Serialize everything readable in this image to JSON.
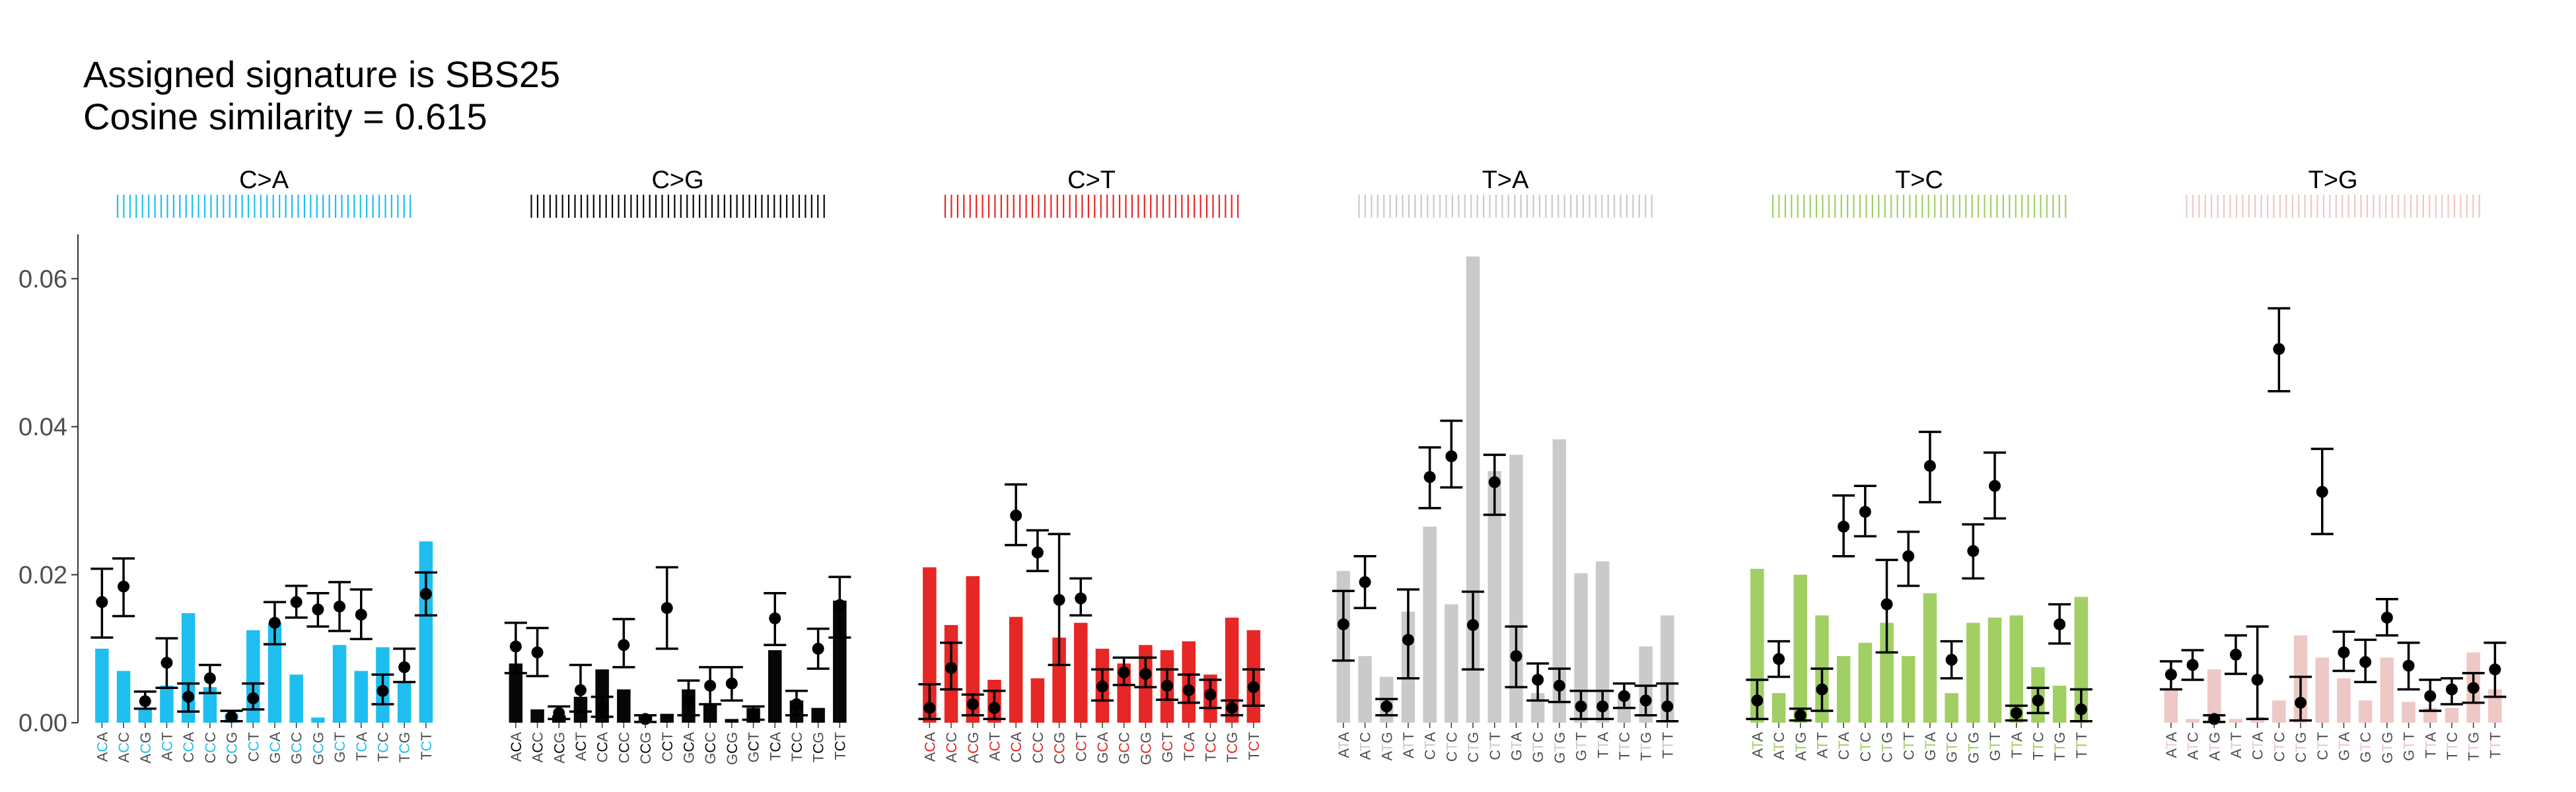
{
  "chart_data": {
    "type": "bar",
    "title_lines": [
      "Assigned signature is SBS25",
      "Cosine similarity = 0.615"
    ],
    "ylim": [
      0,
      0.066
    ],
    "yticks": [
      0.0,
      0.02,
      0.04,
      0.06
    ],
    "ytick_labels": [
      "0.00",
      "0.02",
      "0.04",
      "0.06"
    ],
    "xlabel": "",
    "ylabel": "",
    "grid": false,
    "legend": "none",
    "mutation_types": [
      "C>A",
      "C>G",
      "C>T",
      "T>A",
      "T>C",
      "T>G"
    ],
    "type_colors": [
      "#1ebff0",
      "#050708",
      "#e62725",
      "#cbcacb",
      "#a1cf64",
      "#edc8c5"
    ],
    "contexts": [
      [
        "ACA",
        "ACC",
        "ACG",
        "ACT",
        "CCA",
        "CCC",
        "CCG",
        "CCT",
        "GCA",
        "GCC",
        "GCG",
        "GCT",
        "TCA",
        "TCC",
        "TCG",
        "TCT"
      ],
      [
        "ACA",
        "ACC",
        "ACG",
        "ACT",
        "CCA",
        "CCC",
        "CCG",
        "CCT",
        "GCA",
        "GCC",
        "GCG",
        "GCT",
        "TCA",
        "TCC",
        "TCG",
        "TCT"
      ],
      [
        "ACA",
        "ACC",
        "ACG",
        "ACT",
        "CCA",
        "CCC",
        "CCG",
        "CCT",
        "GCA",
        "GCC",
        "GCG",
        "GCT",
        "TCA",
        "TCC",
        "TCG",
        "TCT"
      ],
      [
        "ATA",
        "ATC",
        "ATG",
        "ATT",
        "CTA",
        "CTC",
        "CTG",
        "CTT",
        "GTA",
        "GTC",
        "GTG",
        "GTT",
        "TTA",
        "TTC",
        "TTG",
        "TTT"
      ],
      [
        "ATA",
        "ATC",
        "ATG",
        "ATT",
        "CTA",
        "CTC",
        "CTG",
        "CTT",
        "GTA",
        "GTC",
        "GTG",
        "GTT",
        "TTA",
        "TTC",
        "TTG",
        "TTT"
      ],
      [
        "ATA",
        "ATC",
        "ATG",
        "ATT",
        "CTA",
        "CTC",
        "CTG",
        "CTT",
        "GTA",
        "GTC",
        "GTG",
        "GTT",
        "TTA",
        "TTC",
        "TTG",
        "TTT"
      ]
    ],
    "signature_values": [
      [
        0.01,
        0.007,
        0.002,
        0.005,
        0.0148,
        0.0048,
        0.0012,
        0.0125,
        0.0135,
        0.0065,
        0.0007,
        0.0105,
        0.007,
        0.0102,
        0.0055,
        0.0245
      ],
      [
        0.008,
        0.0018,
        0.001,
        0.0035,
        0.0072,
        0.0045,
        0.001,
        0.0012,
        0.0045,
        0.0025,
        0.0005,
        0.002,
        0.0098,
        0.003,
        0.002,
        0.0165
      ],
      [
        0.021,
        0.0132,
        0.0198,
        0.0058,
        0.0143,
        0.006,
        0.0115,
        0.0135,
        0.01,
        0.008,
        0.0105,
        0.0098,
        0.011,
        0.0065,
        0.0142,
        0.0125
      ],
      [
        0.0205,
        0.009,
        0.0062,
        0.015,
        0.0265,
        0.016,
        0.063,
        0.034,
        0.0362,
        0.004,
        0.0383,
        0.0202,
        0.0218,
        0.004,
        0.0103,
        0.0145
      ],
      [
        0.0208,
        0.004,
        0.02,
        0.0145,
        0.009,
        0.0108,
        0.0135,
        0.009,
        0.0175,
        0.004,
        0.0135,
        0.0142,
        0.0145,
        0.0075,
        0.005,
        0.017
      ],
      [
        0.0045,
        0.0005,
        0.0072,
        0.0005,
        0.0008,
        0.003,
        0.0118,
        0.0088,
        0.006,
        0.003,
        0.0088,
        0.0028,
        0.002,
        0.002,
        0.0095,
        0.0045
      ]
    ],
    "sample_means": [
      [
        0.0163,
        0.0184,
        0.0029,
        0.0081,
        0.0035,
        0.006,
        0.0008,
        0.0033,
        0.0135,
        0.0163,
        0.0153,
        0.0157,
        0.0146,
        0.0043,
        0.0075,
        0.0174
      ],
      [
        0.0103,
        0.0095,
        0.0013,
        0.0044,
        0.002,
        0.0105,
        0.0005,
        0.0155,
        0.003,
        0.005,
        0.0053,
        0.0012,
        0.0141,
        0.0025,
        0.01,
        0.0159
      ],
      [
        0.002,
        0.0074,
        0.0025,
        0.002,
        0.028,
        0.023,
        0.0166,
        0.0168,
        0.0049,
        0.0068,
        0.0066,
        0.005,
        0.0044,
        0.0038,
        0.002,
        0.0048
      ],
      [
        0.0133,
        0.019,
        0.0022,
        0.0112,
        0.0332,
        0.036,
        0.0132,
        0.0325,
        0.009,
        0.0058,
        0.005,
        0.0022,
        0.0022,
        0.0036,
        0.003,
        0.0022
      ],
      [
        0.003,
        0.0086,
        0.001,
        0.0045,
        0.0265,
        0.0285,
        0.016,
        0.0225,
        0.0347,
        0.0085,
        0.0232,
        0.032,
        0.0013,
        0.003,
        0.0133,
        0.0018
      ],
      [
        0.0065,
        0.0078,
        0.0005,
        0.0092,
        0.0058,
        0.0505,
        0.0027,
        0.0312,
        0.0095,
        0.0082,
        0.0142,
        0.0077,
        0.0036,
        0.0045,
        0.0047,
        0.0072
      ]
    ],
    "error_low": [
      [
        0.0115,
        0.0144,
        0.0019,
        0.0047,
        0.0015,
        0.004,
        0.0002,
        0.0018,
        0.0106,
        0.0142,
        0.013,
        0.0124,
        0.0113,
        0.0025,
        0.0055,
        0.0145
      ],
      [
        0.0067,
        0.0063,
        0.0005,
        0.0015,
        0.0008,
        0.0075,
        0.0001,
        0.01,
        0.001,
        0.0025,
        0.003,
        0.0004,
        0.0105,
        0.001,
        0.0073,
        0.0115
      ],
      [
        0.0005,
        0.0045,
        0.001,
        0.0005,
        0.024,
        0.0205,
        0.0078,
        0.0145,
        0.003,
        0.0051,
        0.0048,
        0.0031,
        0.0027,
        0.002,
        0.001,
        0.0023
      ],
      [
        0.0084,
        0.0155,
        0.001,
        0.006,
        0.029,
        0.0318,
        0.0072,
        0.0281,
        0.0048,
        0.003,
        0.0028,
        0.0005,
        0.0005,
        0.002,
        0.001,
        0.0002
      ],
      [
        0.0005,
        0.0062,
        0.0003,
        0.0016,
        0.0225,
        0.0252,
        0.0095,
        0.0185,
        0.0298,
        0.006,
        0.0195,
        0.0276,
        0.0003,
        0.0013,
        0.0107,
        0.0002
      ],
      [
        0.0045,
        0.0058,
        0.0001,
        0.0066,
        0.0005,
        0.0448,
        0.0003,
        0.0255,
        0.007,
        0.0055,
        0.0118,
        0.0045,
        0.0016,
        0.0025,
        0.0027,
        0.0035
      ]
    ],
    "error_high": [
      [
        0.0208,
        0.0222,
        0.0042,
        0.0114,
        0.0053,
        0.0078,
        0.0016,
        0.0053,
        0.0163,
        0.0185,
        0.0175,
        0.019,
        0.018,
        0.0065,
        0.01,
        0.0203
      ],
      [
        0.0135,
        0.0128,
        0.0022,
        0.0078,
        0.0035,
        0.014,
        0.001,
        0.021,
        0.0057,
        0.0075,
        0.0075,
        0.0022,
        0.0175,
        0.0043,
        0.0127,
        0.0197
      ],
      [
        0.0052,
        0.0108,
        0.0038,
        0.0043,
        0.0322,
        0.026,
        0.0255,
        0.0195,
        0.0072,
        0.0088,
        0.0088,
        0.0072,
        0.0065,
        0.0058,
        0.003,
        0.0072
      ],
      [
        0.0178,
        0.0225,
        0.0032,
        0.018,
        0.0372,
        0.0408,
        0.0177,
        0.0362,
        0.013,
        0.008,
        0.0073,
        0.0043,
        0.0043,
        0.0053,
        0.005,
        0.0053
      ],
      [
        0.0058,
        0.011,
        0.0019,
        0.0073,
        0.0307,
        0.032,
        0.022,
        0.0258,
        0.0393,
        0.011,
        0.0268,
        0.0365,
        0.0023,
        0.0047,
        0.016,
        0.0045
      ],
      [
        0.0083,
        0.0098,
        0.001,
        0.0118,
        0.013,
        0.056,
        0.0062,
        0.037,
        0.0123,
        0.0112,
        0.0167,
        0.0108,
        0.0058,
        0.006,
        0.0067,
        0.0108
      ]
    ]
  }
}
